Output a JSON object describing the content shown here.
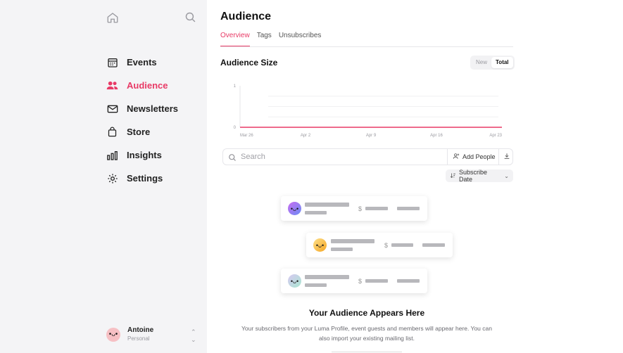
{
  "sidebar": {
    "items": [
      {
        "label": "Events",
        "icon": "calendar-icon",
        "active": false
      },
      {
        "label": "Audience",
        "icon": "people-icon",
        "active": true
      },
      {
        "label": "Newsletters",
        "icon": "envelope-icon",
        "active": false
      },
      {
        "label": "Store",
        "icon": "shopping-bag-icon",
        "active": false
      },
      {
        "label": "Insights",
        "icon": "bar-chart-icon",
        "active": false
      },
      {
        "label": "Settings",
        "icon": "gear-icon",
        "active": false
      }
    ],
    "user": {
      "name": "Antoine",
      "plan": "Personal"
    }
  },
  "main": {
    "title": "Audience",
    "tabs": [
      {
        "label": "Overview",
        "active": true
      },
      {
        "label": "Tags",
        "active": false
      },
      {
        "label": "Unsubscribes",
        "active": false
      }
    ],
    "section_title": "Audience Size",
    "toggle": {
      "new_label": "New",
      "total_label": "Total",
      "selected": "Total"
    },
    "search": {
      "placeholder": "Search"
    },
    "add_people_label": "Add People",
    "sort_label": "Subscribe Date",
    "empty": {
      "title": "Your Audience Appears Here",
      "text": "Your subscribers from your Luma Profile, event guests and members will appear here. You can also import your existing mailing list."
    }
  },
  "colors": {
    "accent": "#e83a66",
    "sidebar_bg": "#f4f4f6"
  },
  "chart_data": {
    "type": "line",
    "x": [
      "Mar 26",
      "Apr 2",
      "Apr 9",
      "Apr 16",
      "Apr 23"
    ],
    "series": [
      {
        "values": [
          0,
          0,
          0,
          0,
          0
        ]
      }
    ],
    "yticks": [
      "1",
      "0"
    ],
    "ylim": [
      0,
      1
    ],
    "grid": true
  }
}
